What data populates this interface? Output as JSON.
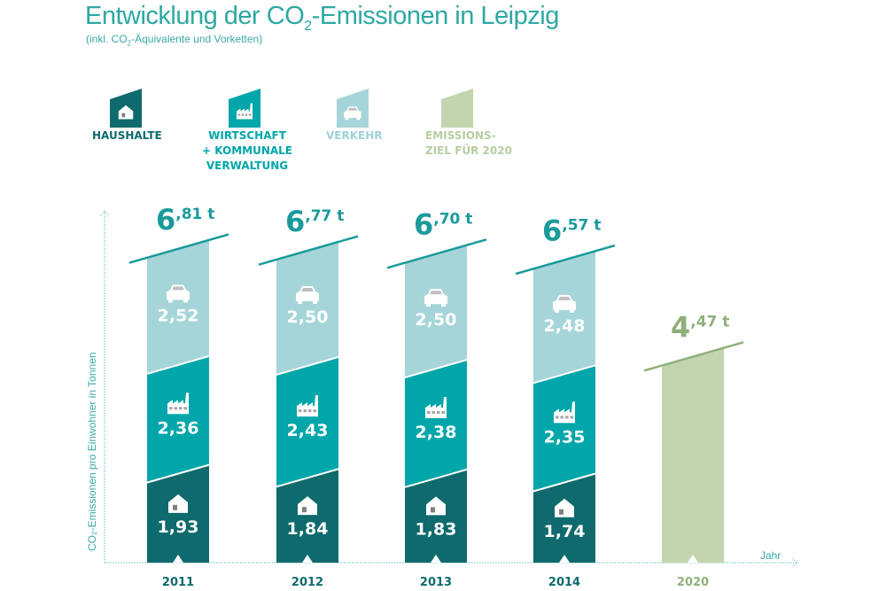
{
  "chart_data": {
    "type": "bar",
    "stacked": true,
    "title_pre": "Entwicklung der CO",
    "title_sub": "2",
    "title_post": "-Emissionen in Leipzig",
    "subtitle_pre": "(inkl. CO",
    "subtitle_sub": "2",
    "subtitle_post": "-Äquivalente und Vorketten)",
    "ylabel": "CO₂-Emissionen pro Einwohner in Tonnen",
    "xlabel": "Jahr",
    "unit": "t",
    "categories": [
      "2011",
      "2012",
      "2013",
      "2014",
      "2020"
    ],
    "series": [
      {
        "name": "HAUSHALTE",
        "icon": "house-icon",
        "color": "#0e6a6c",
        "values": [
          1.93,
          1.84,
          1.83,
          1.74,
          null
        ]
      },
      {
        "name": "WIRTSCHAFT + KOMMUNALE VERWALTUNG",
        "icon": "factory-icon",
        "color": "#00a6a9",
        "values": [
          2.36,
          2.43,
          2.38,
          2.35,
          null
        ]
      },
      {
        "name": "VERKEHR",
        "icon": "car-icon",
        "color": "#a6d5d9",
        "values": [
          2.52,
          2.5,
          2.5,
          2.48,
          null
        ]
      },
      {
        "name": "EMISSIONSZIEL FÜR 2020",
        "icon": null,
        "color": "#c3d5af",
        "values": [
          null,
          null,
          null,
          null,
          4.47
        ]
      }
    ],
    "totals": [
      6.81,
      6.77,
      6.7,
      6.57,
      4.47
    ],
    "total_color": "#1a9a9c",
    "target_color": "#8fb07a",
    "legend": [
      {
        "lines": [
          "HAUSHALTE"
        ],
        "color": "#0e6a6c",
        "icon": "house-icon"
      },
      {
        "lines": [
          "WIRTSCHAFT",
          "+ KOMMUNALE",
          "VERWALTUNG"
        ],
        "color": "#00a6a9",
        "icon": "factory-icon"
      },
      {
        "lines": [
          "VERKEHR"
        ],
        "color": "#a6d5d9",
        "icon": "car-icon"
      },
      {
        "lines": [
          "EMISSIONS-",
          "ZIEL FÜR 2020"
        ],
        "color": "#c3d5af",
        "icon": null
      }
    ],
    "legend_placement": "top",
    "grid": false
  }
}
